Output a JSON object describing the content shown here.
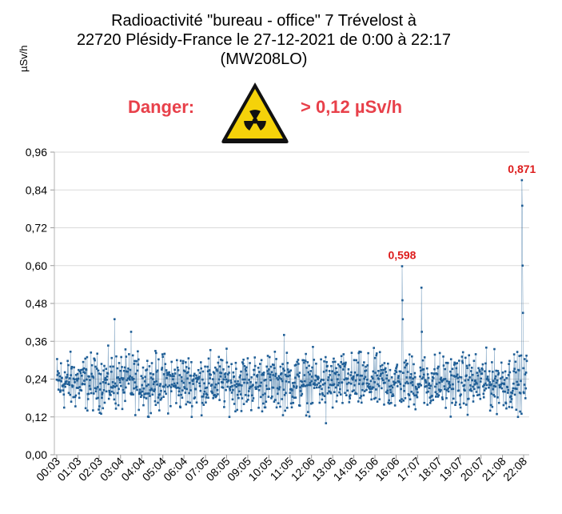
{
  "chart_data": {
    "type": "line",
    "title_lines": [
      "Radioactivité \"bureau - office\"  7 Trévelost à",
      "22720 Plésidy-France le 27-12-2021 de 0:00 à 22:17",
      "(MW208LO)"
    ],
    "ylabel": "µSv/h",
    "xlabel": "",
    "danger_label": "Danger:",
    "danger_threshold": "> 0,12 µSv/h",
    "ylim": [
      0,
      0.96
    ],
    "y_ticks": [
      "0,00",
      "0,12",
      "0,24",
      "0,36",
      "0,48",
      "0,60",
      "0,72",
      "0,84",
      "0,96"
    ],
    "x_ticks": [
      "00:03",
      "01:03",
      "02:03",
      "03:04",
      "04:04",
      "05:04",
      "06:04",
      "07:05",
      "08:05",
      "09:05",
      "10:05",
      "11:05",
      "12:06",
      "13:06",
      "14:06",
      "15:06",
      "16:06",
      "17:07",
      "18:07",
      "19:07",
      "20:07",
      "21:08",
      "22:08"
    ],
    "grid": true,
    "series_color": "#1f5e96",
    "baseline_mean": 0.24,
    "sample_count": 1335,
    "peaks": [
      {
        "time": "12:47",
        "value": 0.1
      },
      {
        "time": "16:23",
        "value": 0.598,
        "label": "0,598"
      },
      {
        "time": "16:23",
        "value": 0.49
      },
      {
        "time": "16:24",
        "value": 0.43
      },
      {
        "time": "17:18",
        "value": 0.53
      },
      {
        "time": "17:18",
        "value": 0.39
      },
      {
        "time": "02:47",
        "value": 0.43
      },
      {
        "time": "03:34",
        "value": 0.39
      },
      {
        "time": "10:48",
        "value": 0.38
      },
      {
        "time": "22:03",
        "value": 0.871,
        "label": "0,871"
      },
      {
        "time": "22:03",
        "value": 0.79
      },
      {
        "time": "22:04",
        "value": 0.6
      },
      {
        "time": "22:06",
        "value": 0.45
      },
      {
        "time": "22:02",
        "value": 0.13
      }
    ],
    "label_color": "#dd1c1c"
  }
}
